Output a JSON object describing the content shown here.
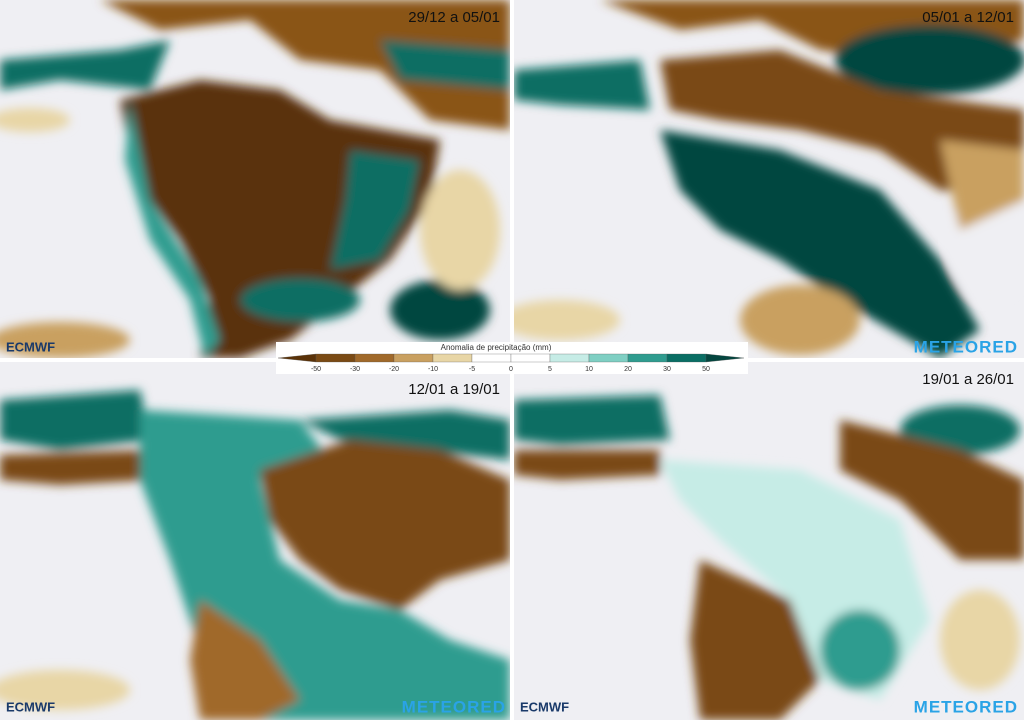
{
  "panels": [
    {
      "period": "29/12 a 05/01",
      "logo_left": "ECMWF"
    },
    {
      "period": "05/01 a 12/01",
      "logo_right": "METEORED"
    },
    {
      "period": "12/01 a 19/01",
      "logo_left": "ECMWF",
      "logo_right": "METEORED"
    },
    {
      "period": "19/01 a 26/01",
      "logo_left": "ECMWF",
      "logo_right": "METEORED"
    }
  ],
  "colorbar": {
    "title": "Anomalia de precipitação (mm)",
    "ticks": [
      -50,
      -30,
      -20,
      -10,
      -5,
      0,
      5,
      10,
      20,
      30,
      50
    ],
    "colors": [
      "#5a3208",
      "#7a4a14",
      "#a0692a",
      "#c9a060",
      "#e8d6a6",
      "#ffffff",
      "#ffffff",
      "#c6ece6",
      "#7fcfc3",
      "#2f9c8f",
      "#0a6e64",
      "#04463f"
    ]
  }
}
